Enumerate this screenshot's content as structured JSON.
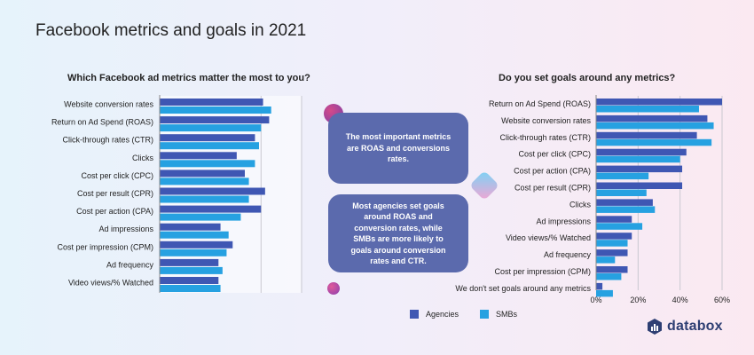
{
  "page": {
    "title": "Facebook metrics and goals in 2021"
  },
  "colors": {
    "agencies": "#3f57b3",
    "smbs": "#26a1e1",
    "callout": "#5b6aad"
  },
  "legend": {
    "agencies": "Agencies",
    "smbs": "SMBs"
  },
  "callouts": [
    "The most important metrics are ROAS and conversions rates.",
    "Most agencies set goals around ROAS and conversion rates, while SMBs are more likely to goals around conversion rates and CTR."
  ],
  "logo": {
    "text": "databox"
  },
  "chart_data": [
    {
      "type": "bar",
      "orientation": "horizontal",
      "title": "Which Facebook ad metrics matter the most to you?",
      "categories": [
        "Website conversion rates",
        "Return on Ad Spend (ROAS)",
        "Click-through rates (CTR)",
        "Clicks",
        "Cost per click (CPC)",
        "Cost per result (CPR)",
        "Cost per action (CPA)",
        "Ad impressions",
        "Cost per impression (CPM)",
        "Ad frequency",
        "Video views/% Watched"
      ],
      "series": [
        {
          "name": "Agencies",
          "values": [
            51,
            54,
            47,
            38,
            42,
            52,
            50,
            30,
            36,
            29,
            29
          ]
        },
        {
          "name": "SMBs",
          "values": [
            55,
            50,
            49,
            47,
            44,
            44,
            40,
            34,
            33,
            31,
            30
          ]
        }
      ],
      "xlim": [
        0,
        70
      ],
      "gridlines": [
        50,
        70
      ],
      "tick_labels_visible": false
    },
    {
      "type": "bar",
      "orientation": "horizontal",
      "title": "Do you set goals around any metrics?",
      "categories": [
        "Return on Ad Spend (ROAS)",
        "Website conversion rates",
        "Click-through rates (CTR)",
        "Cost per click (CPC)",
        "Cost per action (CPA)",
        "Cost per result (CPR)",
        "Clicks",
        "Ad impressions",
        "Video views/% Watched",
        "Ad frequency",
        "Cost per impression (CPM)",
        "We don't set goals around any metrics"
      ],
      "series": [
        {
          "name": "Agencies",
          "values": [
            60,
            53,
            48,
            43,
            41,
            41,
            27,
            17,
            17,
            15,
            15,
            3
          ]
        },
        {
          "name": "SMBs",
          "values": [
            49,
            56,
            55,
            40,
            25,
            24,
            28,
            22,
            15,
            9,
            12,
            8
          ]
        }
      ],
      "xlim": [
        0,
        60
      ],
      "xticks": [
        0,
        20,
        40,
        60
      ],
      "xtick_labels": [
        "0%",
        "20%",
        "40%",
        "60%"
      ]
    }
  ]
}
